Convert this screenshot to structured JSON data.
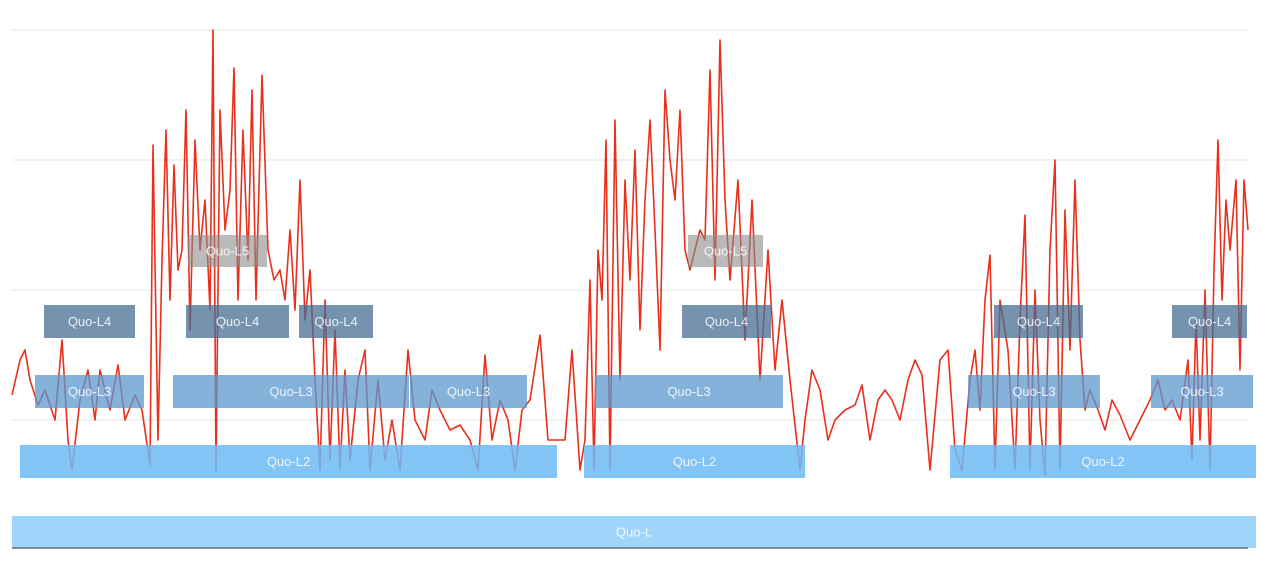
{
  "chart_data": {
    "type": "line",
    "xlim": [
      0,
      1269
    ],
    "ylim": [
      0,
      520
    ],
    "yticks": [
      128,
      258,
      388,
      518
    ],
    "grid": true,
    "color": "#e8301c",
    "x": [
      12,
      20,
      25,
      30,
      38,
      45,
      55,
      62,
      68,
      72,
      80,
      88,
      95,
      100,
      110,
      118,
      125,
      135,
      142,
      150,
      153,
      158,
      162,
      166,
      170,
      174,
      178,
      182,
      186,
      190,
      195,
      200,
      205,
      210,
      213,
      216,
      220,
      225,
      230,
      234,
      238,
      243,
      248,
      252,
      256,
      262,
      268,
      274,
      280,
      285,
      290,
      295,
      300,
      305,
      310,
      315,
      320,
      325,
      330,
      335,
      340,
      345,
      350,
      358,
      365,
      370,
      378,
      385,
      392,
      400,
      408,
      415,
      425,
      432,
      440,
      450,
      460,
      470,
      478,
      485,
      492,
      500,
      508,
      515,
      522,
      530,
      540,
      548,
      558,
      565,
      572,
      580,
      585,
      590,
      594,
      598,
      602,
      606,
      610,
      615,
      620,
      625,
      630,
      635,
      640,
      645,
      650,
      655,
      660,
      665,
      670,
      675,
      680,
      685,
      690,
      700,
      705,
      710,
      715,
      720,
      725,
      730,
      738,
      745,
      752,
      760,
      768,
      775,
      782,
      790,
      800,
      805,
      812,
      820,
      828,
      835,
      845,
      855,
      862,
      870,
      878,
      885,
      892,
      900,
      908,
      915,
      922,
      930,
      940,
      948,
      955,
      962,
      970,
      975,
      980,
      985,
      990,
      995,
      1000,
      1008,
      1015,
      1020,
      1025,
      1030,
      1035,
      1040,
      1045,
      1050,
      1055,
      1060,
      1065,
      1070,
      1075,
      1080,
      1085,
      1090,
      1098,
      1105,
      1112,
      1120,
      1130,
      1140,
      1150,
      1158,
      1165,
      1172,
      1180,
      1188,
      1192,
      1196,
      1200,
      1205,
      1210,
      1214,
      1218,
      1222,
      1226,
      1230,
      1236,
      1240,
      1244,
      1248
    ],
    "values": [
      153,
      188,
      198,
      168,
      143,
      158,
      128,
      208,
      108,
      78,
      148,
      178,
      128,
      178,
      138,
      183,
      128,
      153,
      138,
      83,
      403,
      108,
      288,
      418,
      248,
      383,
      278,
      298,
      438,
      218,
      408,
      298,
      348,
      238,
      518,
      78,
      438,
      318,
      358,
      480,
      248,
      418,
      288,
      458,
      248,
      473,
      298,
      268,
      278,
      248,
      318,
      238,
      368,
      228,
      278,
      168,
      78,
      248,
      88,
      218,
      78,
      178,
      88,
      168,
      198,
      78,
      168,
      88,
      128,
      78,
      198,
      128,
      108,
      158,
      138,
      118,
      123,
      108,
      78,
      193,
      108,
      148,
      128,
      78,
      138,
      148,
      213,
      108,
      108,
      108,
      198,
      78,
      108,
      268,
      78,
      298,
      248,
      408,
      78,
      428,
      168,
      368,
      268,
      398,
      218,
      348,
      428,
      318,
      198,
      458,
      388,
      348,
      438,
      298,
      278,
      318,
      308,
      478,
      268,
      508,
      348,
      268,
      368,
      208,
      348,
      168,
      298,
      178,
      248,
      168,
      78,
      128,
      178,
      158,
      108,
      128,
      138,
      143,
      163,
      108,
      148,
      158,
      148,
      128,
      168,
      188,
      173,
      78,
      188,
      198,
      98,
      78,
      168,
      198,
      138,
      248,
      293,
      78,
      248,
      198,
      78,
      228,
      333,
      78,
      258,
      128,
      73,
      298,
      388,
      78,
      338,
      198,
      368,
      208,
      138,
      158,
      138,
      118,
      148,
      133,
      108,
      128,
      148,
      168,
      138,
      148,
      128,
      188,
      88,
      228,
      108,
      258,
      78,
      278,
      408,
      248,
      348,
      298,
      368,
      178,
      368,
      318
    ],
    "levels": [
      {
        "name": "Quo-L",
        "color": "#9fd5fb",
        "segments": [
          [
            12,
            1256
          ]
        ]
      },
      {
        "name": "Quo-L2",
        "color": "#6cbaf5",
        "segments": [
          [
            20,
            557
          ],
          [
            584,
            805
          ],
          [
            950,
            1256
          ]
        ]
      },
      {
        "name": "Quo-L3",
        "color": "#5b98cf",
        "segments": [
          [
            35,
            144
          ],
          [
            173,
            409
          ],
          [
            410,
            527
          ],
          [
            595,
            783
          ],
          [
            968,
            1100
          ],
          [
            1151,
            1253
          ]
        ]
      },
      {
        "name": "Quo-L4",
        "color": "#476f94",
        "segments": [
          [
            44,
            135
          ],
          [
            186,
            289
          ],
          [
            299,
            373
          ],
          [
            682,
            771
          ],
          [
            994,
            1083
          ],
          [
            1172,
            1247
          ]
        ]
      },
      {
        "name": "Quo-L5",
        "color": "#8c8c8c",
        "segments": [
          [
            188,
            267
          ],
          [
            688,
            763
          ]
        ]
      }
    ]
  }
}
